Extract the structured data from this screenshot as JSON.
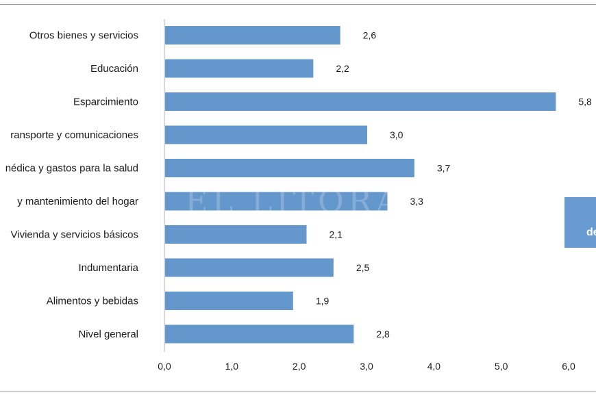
{
  "chart_data": {
    "type": "bar",
    "orientation": "horizontal",
    "categories": [
      "Otros bienes y servicios",
      "Educación",
      "Esparcimiento",
      "ransporte y comunicaciones",
      "nédica y gastos para la salud",
      "y  mantenimiento del hogar",
      "Vivienda y servicios básicos",
      "Indumentaria",
      "Alimentos y bebidas",
      "Nivel  general"
    ],
    "values": [
      2.6,
      2.2,
      5.8,
      3.0,
      3.7,
      3.3,
      2.1,
      2.5,
      1.9,
      2.8
    ],
    "value_labels": [
      "2,6",
      "2,2",
      "5,8",
      "3,0",
      "3,7",
      "3,3",
      "2,1",
      "2,5",
      "1,9",
      "2,8"
    ],
    "xlim": [
      0,
      6
    ],
    "xticks": [
      0,
      1,
      2,
      3,
      4,
      5,
      6
    ],
    "xtick_labels": [
      "0,0",
      "1,0",
      "2,0",
      "3,0",
      "4,0",
      "5,0",
      "6,0"
    ],
    "title": "",
    "xlabel": "",
    "ylabel": "",
    "bar_color": "#6497cc",
    "grid": false
  },
  "overlays": {
    "watermark": "EL LITORAL",
    "note_box_text": "de",
    "note_box_color": "#6a9bd0"
  }
}
